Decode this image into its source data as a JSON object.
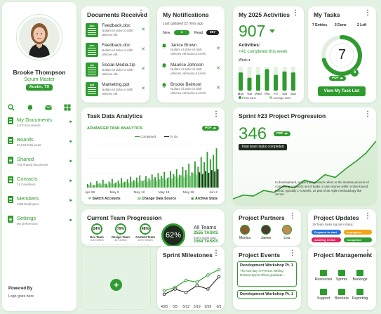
{
  "profile": {
    "name": "Brooke Thompson",
    "role": "Scrum Master",
    "location": "Austin, TX"
  },
  "sidebar": {
    "icons": [
      "search-icon",
      "bell-icon",
      "mail-icon",
      "grid-icon"
    ],
    "items": [
      {
        "label": "My Documents",
        "sub": "4,570 Documents"
      },
      {
        "label": "Boards",
        "sub": "97,543 Total posts"
      },
      {
        "label": "Shared",
        "sub": "703 Shared documents"
      },
      {
        "label": "Contacts",
        "sub": "74 Coworkers"
      },
      {
        "label": "Members",
        "sub": "1133 Employees"
      },
      {
        "label": "Settings",
        "sub": "My preferences"
      }
    ],
    "powered_by": "Powered By",
    "logo_text": "Logo goes here"
  },
  "documents": {
    "title": "Documents Received",
    "items": [
      {
        "type": "doc",
        "name": "Feedback.doc",
        "desc": "Nullam id dolor id nibh ultricies elit."
      },
      {
        "type": "doc",
        "name": "Feedback.doc",
        "desc": "Nullam id dolor id nibh ultricies elit."
      },
      {
        "type": "zip",
        "name": "Social-Media.zip",
        "desc": "Nullam id dolor id nibh ultricies elit."
      },
      {
        "type": "ppt",
        "name": "Marketing.ppt",
        "desc": "Nullam id dolor id nibh ultricies elit."
      }
    ]
  },
  "notifications": {
    "title": "My Notifications",
    "updated": "Last updated 22 mins ago",
    "new_label": "New",
    "new_count": "4",
    "read_label": "Read",
    "read_count": "957",
    "items": [
      {
        "name": "Janice Brown",
        "desc": "Nullam id dolor id nibh ultricies vehicula ut id elit."
      },
      {
        "name": "Maurice Johnson",
        "desc": "Nullam id dolor id nibh ultricies vehicula ut id elit."
      },
      {
        "name": "Brooke Belmont",
        "desc": "Nullam id dolor id nibh ultricies vehicula ut id elit."
      }
    ]
  },
  "activities": {
    "title": "My 2025 Activities",
    "value": "907",
    "subtitle": "Activities:",
    "completed": "+41 completed this week",
    "period": "Week",
    "legend_peak": "Peak zone",
    "legend_avg": "Average zone"
  },
  "tasks": {
    "title": "My Tasks",
    "stats": [
      {
        "value": "7",
        "label": "Entries"
      },
      {
        "value": "5",
        "label": "Done"
      },
      {
        "value": "2",
        "label": "Left"
      }
    ],
    "center": "7",
    "badge": "5",
    "pdf_label": "PDF",
    "button": "View My Task List",
    "progress": 0.71
  },
  "analytics": {
    "title": "Task Data Analytics",
    "subtitle": "ADVANCED TASK ANALYTICS",
    "pdf_label": "PDF",
    "legend_completed": "Completed",
    "legend_todo": "To do",
    "links": [
      "Switch Accounts",
      "Change Data Source",
      "Archive Stats"
    ]
  },
  "sprint": {
    "title": "Sprint #23 Project Progression",
    "value": "346",
    "pdf_label": "PDF",
    "caption": "Total team tasks completed",
    "description": "In development, a sprint progression refers to the iterative process of completing a specific set of tasks or user stories within a time-boxed period, typically 1-4 weeks, as part of an Agile methodology like Scrum."
  },
  "team": {
    "title": "Current Team Progression",
    "groups": [
      {
        "pct": "24%",
        "label": "Dev Team",
        "tasks": "104 TASKS"
      },
      {
        "pct": "79%",
        "label": "Design Team",
        "tasks": "42 TASKS"
      },
      {
        "pct": "48%",
        "label": "Content Team",
        "tasks": "1070 TASKS"
      }
    ],
    "overall": "62%",
    "all_label": "All Teams",
    "sprint_tasks": "2555 TASKS",
    "sprint_label": "Entire sprint total",
    "completed_tasks": "1584 TASKS",
    "completed_label": "Tasks completed"
  },
  "partners": {
    "title": "Project Partners",
    "people": [
      "Monica",
      "James",
      "Lisa"
    ]
  },
  "updates": {
    "title": "Project Updates",
    "subtitle": "19 Team tasks log item status",
    "statuses": [
      {
        "label": "Prepared to start",
        "color": "#2a6fdb"
      },
      {
        "label": "In progress",
        "color": "#f2a316"
      },
      {
        "label": "Awaiting review",
        "color": "#e0245e"
      },
      {
        "label": "Completed",
        "color": "#2f9b2f"
      }
    ]
  },
  "milestones": {
    "title": "Sprint Milestones",
    "x_labels": [
      "4/28",
      "5/5",
      "5/12",
      "5/19",
      "5/26",
      "6/3"
    ]
  },
  "events": {
    "title": "Project Events",
    "items": [
      {
        "name": "Development Workshop Pt. 1",
        "desc": "The two-day In-Person Writing Retreat Sprint offers graduate..."
      },
      {
        "name": "Development Workshop Pt. 1",
        "desc": ""
      }
    ]
  },
  "management": {
    "title": "Project Management",
    "items": [
      "Resources",
      "Sprints",
      "Backlogs",
      "Support",
      "Blockers",
      "Reporting"
    ]
  },
  "chart_data": [
    {
      "type": "bar",
      "title": "My 2025 Activities",
      "categories": [
        "Mon",
        "Tue",
        "Wed",
        "Thu",
        "Fri",
        "Sat",
        "Sun"
      ],
      "values": [
        38,
        27,
        33,
        45,
        33,
        40,
        38
      ],
      "ylim": [
        0,
        50
      ]
    },
    {
      "type": "bar",
      "title": "Task Data Analytics",
      "x_labels": [
        "Apr 28",
        "May 5",
        "May 12",
        "May 19",
        "May 26",
        "Jun 2"
      ],
      "series": [
        {
          "name": "Completed",
          "values": [
            8,
            12,
            6,
            15,
            10,
            18,
            9,
            14,
            20,
            11,
            16,
            22,
            13,
            19,
            25,
            17,
            23,
            28,
            15,
            26,
            21,
            30,
            24,
            33,
            27,
            36,
            22,
            38,
            31,
            42,
            29,
            47,
            40,
            55,
            35,
            60,
            48,
            70,
            58,
            82,
            65,
            75,
            90
          ]
        },
        {
          "name": "To do",
          "values": [
            5,
            4,
            6,
            8,
            7,
            9,
            6,
            10,
            8,
            12,
            9,
            11,
            14,
            10,
            13,
            15,
            12,
            16,
            18,
            14,
            17,
            20,
            16,
            19,
            22,
            18,
            24,
            21,
            26,
            23,
            28,
            25,
            30,
            27,
            33,
            29,
            35,
            31,
            38,
            34,
            40,
            37,
            42
          ]
        }
      ],
      "ylim": [
        0,
        100
      ]
    },
    {
      "type": "area",
      "title": "Sprint #23 Project Progression",
      "x": [
        1,
        2,
        3,
        4,
        5,
        6,
        7,
        8,
        9,
        10,
        11,
        12,
        13,
        14,
        15
      ],
      "values": [
        6,
        10,
        9,
        15,
        13,
        20,
        18,
        26,
        23,
        32,
        29,
        38,
        46,
        55,
        68
      ],
      "ylim": [
        0,
        80
      ]
    },
    {
      "type": "line",
      "title": "Sprint Milestones",
      "categories": [
        "4/28",
        "5/5",
        "5/12",
        "5/19",
        "5/26",
        "6/3"
      ],
      "series": [
        {
          "values": [
            12,
            16,
            24,
            22,
            30,
            36
          ]
        },
        {
          "values": [
            8,
            14,
            10,
            18,
            14,
            28
          ]
        }
      ],
      "ylim": [
        0,
        40
      ]
    }
  ]
}
